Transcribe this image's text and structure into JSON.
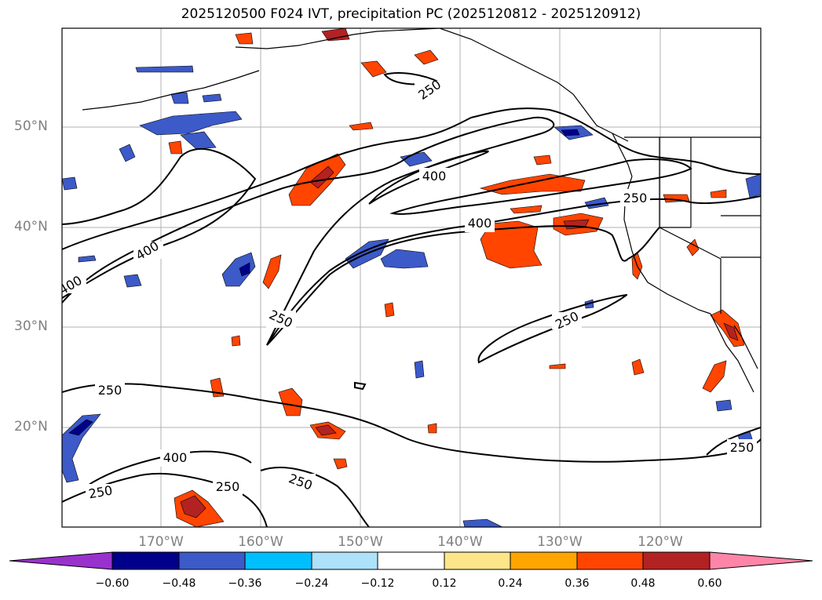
{
  "chart_data": {
    "type": "contour-map",
    "title": "2025120500 F024 IVT, precipitation PC (2025120812 - 2025120912)",
    "lat_ticks": [
      "50°N",
      "40°N",
      "30°N",
      "20°N"
    ],
    "lon_ticks": [
      "170°W",
      "160°W",
      "150°W",
      "140°W",
      "130°W",
      "120°W"
    ],
    "ivt_contour_labels": [
      "250",
      "400",
      "250",
      "400",
      "400",
      "400",
      "250",
      "250",
      "250",
      "400",
      "250",
      "250",
      "250",
      "250"
    ],
    "colorbar": {
      "ticks": [
        "−0.60",
        "−0.48",
        "−0.36",
        "−0.24",
        "−0.12",
        "0.12",
        "0.24",
        "0.36",
        "0.48",
        "0.60"
      ],
      "bins": [
        {
          "range": "< -0.60",
          "color": "#9932CC"
        },
        {
          "range": "-0.60 to -0.48",
          "color": "#00008B"
        },
        {
          "range": "-0.48 to -0.36",
          "color": "#3C5AC8"
        },
        {
          "range": "-0.36 to -0.24",
          "color": "#00BFFF"
        },
        {
          "range": "-0.24 to -0.12",
          "color": "#ADE2FA"
        },
        {
          "range": "-0.12 to 0.12",
          "color": "#FFFFFF"
        },
        {
          "range": "0.12 to 0.24",
          "color": "#FDE68A"
        },
        {
          "range": "0.24 to 0.36",
          "color": "#FFA500"
        },
        {
          "range": "0.36 to 0.48",
          "color": "#FF4500"
        },
        {
          "range": "0.48 to 0.60",
          "color": "#B22222"
        },
        {
          "range": "> 0.60",
          "color": "#FF85A8"
        }
      ]
    }
  }
}
